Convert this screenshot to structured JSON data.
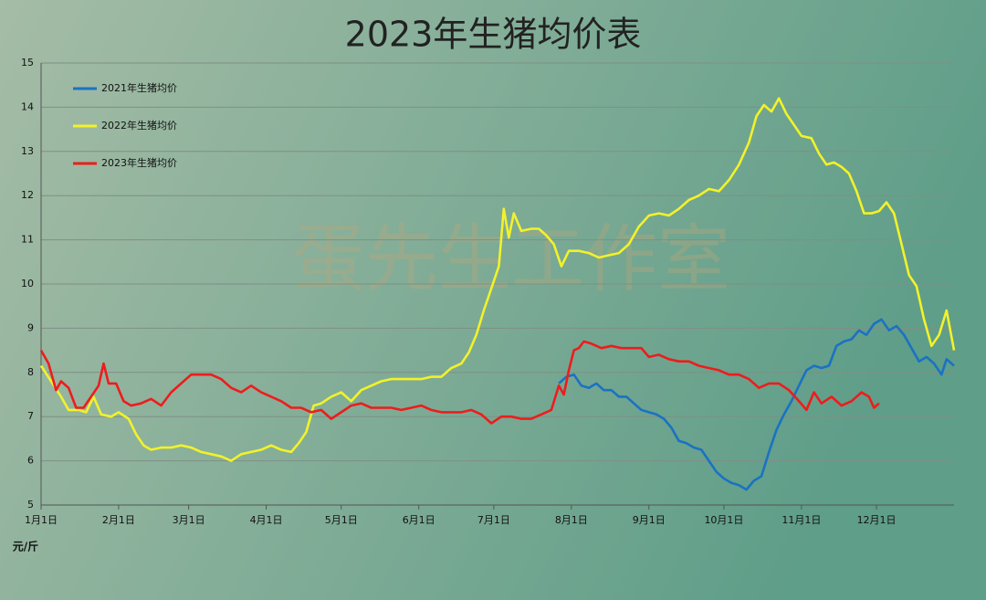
{
  "chart_data": {
    "type": "line",
    "title": "2023年生猪均价表",
    "y_unit": "元/斤",
    "watermark": "蛋先生工作室",
    "xlim": [
      0,
      365
    ],
    "xticks": [
      {
        "value": 0,
        "label": "1月1日"
      },
      {
        "value": 31,
        "label": "2月1日"
      },
      {
        "value": 59,
        "label": "3月1日"
      },
      {
        "value": 90,
        "label": "4月1日"
      },
      {
        "value": 120,
        "label": "5月1日"
      },
      {
        "value": 151,
        "label": "6月1日"
      },
      {
        "value": 181,
        "label": "7月1日"
      },
      {
        "value": 212,
        "label": "8月1日"
      },
      {
        "value": 243,
        "label": "9月1日"
      },
      {
        "value": 273,
        "label": "10月1日"
      },
      {
        "value": 304,
        "label": "11月1日"
      },
      {
        "value": 334,
        "label": "12月1日"
      }
    ],
    "ylim": [
      5,
      15
    ],
    "yticks": [
      5,
      6,
      7,
      8,
      9,
      10,
      11,
      12,
      13,
      14,
      15
    ],
    "grid": true,
    "legend": "upper left",
    "series": [
      {
        "name": "2021年生猪均价",
        "color": "#1a72c4",
        "x": [
          207,
          210,
          213,
          216,
          219,
          222,
          225,
          228,
          231,
          234,
          237,
          240,
          243,
          246,
          249,
          252,
          255,
          258,
          261,
          264,
          267,
          270,
          273,
          276,
          279,
          282,
          285,
          288,
          291,
          294,
          297,
          300,
          303,
          306,
          309,
          312,
          315,
          318,
          321,
          324,
          327,
          330,
          333,
          336,
          339,
          342,
          345,
          348,
          351,
          354,
          357,
          360,
          362,
          365
        ],
        "values": [
          7.75,
          7.9,
          7.95,
          7.7,
          7.65,
          7.75,
          7.6,
          7.6,
          7.45,
          7.45,
          7.3,
          7.15,
          7.1,
          7.05,
          6.95,
          6.75,
          6.45,
          6.4,
          6.3,
          6.25,
          6.0,
          5.75,
          5.6,
          5.5,
          5.45,
          5.35,
          5.55,
          5.65,
          6.2,
          6.7,
          7.05,
          7.35,
          7.7,
          8.05,
          8.15,
          8.1,
          8.15,
          8.6,
          8.7,
          8.75,
          8.95,
          8.85,
          9.1,
          9.2,
          8.95,
          9.05,
          8.85,
          8.55,
          8.25,
          8.35,
          8.2,
          7.95,
          8.3,
          8.15
        ]
      },
      {
        "name": "2022年生猪均价",
        "color": "#f2f22a",
        "x": [
          0,
          4,
          8,
          11,
          15,
          18,
          21,
          24,
          28,
          31,
          35,
          38,
          41,
          44,
          48,
          52,
          56,
          60,
          64,
          68,
          72,
          76,
          80,
          84,
          88,
          92,
          96,
          100,
          103,
          106,
          109,
          112,
          116,
          120,
          124,
          128,
          132,
          136,
          140,
          144,
          148,
          152,
          156,
          160,
          164,
          168,
          171,
          174,
          177,
          180,
          183,
          185,
          187,
          189,
          192,
          196,
          199,
          202,
          205,
          208,
          211,
          215,
          219,
          223,
          227,
          231,
          235,
          239,
          243,
          247,
          251,
          255,
          259,
          263,
          267,
          271,
          275,
          279,
          283,
          286,
          289,
          292,
          295,
          298,
          301,
          304,
          308,
          311,
          314,
          317,
          320,
          323,
          326,
          329,
          332,
          335,
          338,
          341,
          344,
          347,
          350,
          353,
          356,
          359,
          362,
          365
        ],
        "values": [
          8.15,
          7.8,
          7.45,
          7.15,
          7.15,
          7.1,
          7.45,
          7.05,
          7.0,
          7.1,
          6.95,
          6.6,
          6.35,
          6.25,
          6.3,
          6.3,
          6.35,
          6.3,
          6.2,
          6.15,
          6.1,
          6.0,
          6.15,
          6.2,
          6.25,
          6.35,
          6.25,
          6.2,
          6.4,
          6.65,
          7.25,
          7.3,
          7.45,
          7.55,
          7.35,
          7.6,
          7.7,
          7.8,
          7.85,
          7.85,
          7.85,
          7.85,
          7.9,
          7.9,
          8.1,
          8.2,
          8.45,
          8.85,
          9.4,
          9.9,
          10.4,
          11.7,
          11.05,
          11.6,
          11.2,
          11.25,
          11.25,
          11.1,
          10.9,
          10.4,
          10.75,
          10.75,
          10.7,
          10.6,
          10.65,
          10.7,
          10.9,
          11.3,
          11.55,
          11.6,
          11.55,
          11.7,
          11.9,
          12.0,
          12.15,
          12.1,
          12.35,
          12.7,
          13.2,
          13.8,
          14.05,
          13.9,
          14.2,
          13.85,
          13.6,
          13.35,
          13.3,
          12.95,
          12.7,
          12.75,
          12.65,
          12.5,
          12.1,
          11.6,
          11.6,
          11.65,
          11.85,
          11.6,
          10.9,
          10.2,
          9.95,
          9.2,
          8.6,
          8.85,
          9.4,
          8.5
        ]
      },
      {
        "name": "2023年生猪均价",
        "color": "#ee1c1c",
        "x": [
          0,
          3,
          6,
          8,
          11,
          14,
          17,
          20,
          23,
          25,
          27,
          30,
          33,
          36,
          40,
          44,
          48,
          52,
          56,
          60,
          64,
          68,
          72,
          76,
          80,
          84,
          88,
          92,
          96,
          100,
          104,
          108,
          112,
          116,
          120,
          124,
          128,
          132,
          136,
          140,
          144,
          148,
          152,
          156,
          160,
          164,
          168,
          172,
          176,
          180,
          184,
          188,
          192,
          196,
          200,
          204,
          207,
          209,
          211,
          213,
          215,
          217,
          220,
          224,
          228,
          232,
          236,
          240,
          243,
          247,
          251,
          255,
          259,
          263,
          267,
          271,
          275,
          279,
          283,
          287,
          291,
          295,
          299,
          303,
          306,
          309,
          312,
          316,
          320,
          324,
          328,
          331,
          333,
          335
        ],
        "values": [
          8.5,
          8.2,
          7.6,
          7.8,
          7.65,
          7.2,
          7.2,
          7.45,
          7.7,
          8.2,
          7.75,
          7.75,
          7.35,
          7.25,
          7.3,
          7.4,
          7.25,
          7.55,
          7.75,
          7.95,
          7.95,
          7.95,
          7.85,
          7.65,
          7.55,
          7.7,
          7.55,
          7.45,
          7.35,
          7.2,
          7.2,
          7.1,
          7.15,
          6.95,
          7.1,
          7.25,
          7.3,
          7.2,
          7.2,
          7.2,
          7.15,
          7.2,
          7.25,
          7.15,
          7.1,
          7.1,
          7.1,
          7.15,
          7.05,
          6.85,
          7.0,
          7.0,
          6.95,
          6.95,
          7.05,
          7.15,
          7.7,
          7.5,
          8.05,
          8.5,
          8.55,
          8.7,
          8.65,
          8.55,
          8.6,
          8.55,
          8.55,
          8.55,
          8.35,
          8.4,
          8.3,
          8.25,
          8.25,
          8.15,
          8.1,
          8.05,
          7.95,
          7.95,
          7.85,
          7.65,
          7.75,
          7.75,
          7.6,
          7.35,
          7.15,
          7.55,
          7.3,
          7.45,
          7.25,
          7.35,
          7.55,
          7.45,
          7.2,
          7.3
        ]
      }
    ]
  }
}
